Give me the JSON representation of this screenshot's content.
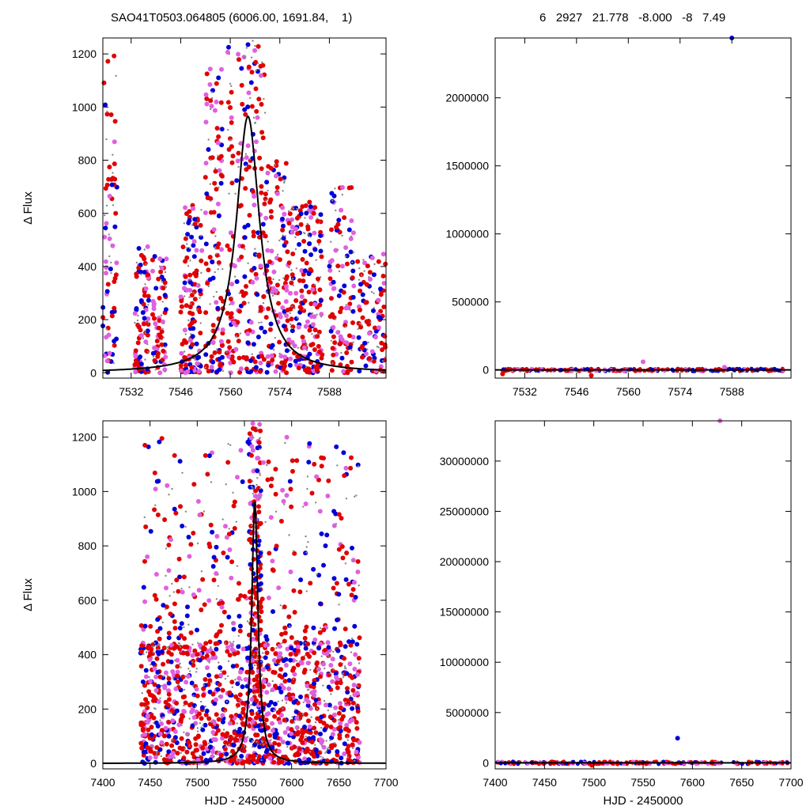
{
  "header": {
    "left": "SAO41T0503.064805 (6006.00, 1691.84,    1)",
    "right": "6   2927   21.778   -8.000   -8   7.49"
  },
  "colors": {
    "red": "#e00000",
    "blue": "#0000d8",
    "pink": "#e060e0",
    "gray": "#888888",
    "curve": "#000000"
  },
  "chart_data": [
    {
      "type": "scatter",
      "panel": "top-left",
      "ylabel": "Δ Flux",
      "xlim": [
        7524,
        7604
      ],
      "ylim": [
        -20,
        1260
      ],
      "xticks": [
        7532,
        7546,
        7560,
        7574,
        7588
      ],
      "yticks": [
        0,
        200,
        400,
        600,
        800,
        1000,
        1200
      ],
      "model": {
        "kind": "lorentzian",
        "peak_x": 7565,
        "peak_y": 965,
        "half_width": 4.0
      },
      "point_clusters": [
        {
          "x": [
            7524,
            7528
          ],
          "y": [
            0,
            1200
          ],
          "n": 60
        },
        {
          "x": [
            7533,
            7537
          ],
          "y": [
            0,
            500
          ],
          "n": 80
        },
        {
          "x": [
            7538,
            7542
          ],
          "y": [
            0,
            450
          ],
          "n": 60
        },
        {
          "x": [
            7546,
            7552
          ],
          "y": [
            0,
            650
          ],
          "n": 120
        },
        {
          "x": [
            7553,
            7558
          ],
          "y": [
            0,
            1150
          ],
          "n": 110
        },
        {
          "x": [
            7559,
            7570
          ],
          "y": [
            0,
            1250
          ],
          "n": 200
        },
        {
          "x": [
            7570,
            7576
          ],
          "y": [
            0,
            800
          ],
          "n": 100
        },
        {
          "x": [
            7576,
            7586
          ],
          "y": [
            0,
            650
          ],
          "n": 180
        },
        {
          "x": [
            7588,
            7595
          ],
          "y": [
            0,
            700
          ],
          "n": 100
        },
        {
          "x": [
            7596,
            7604
          ],
          "y": [
            0,
            450
          ],
          "n": 90
        }
      ]
    },
    {
      "type": "scatter",
      "panel": "top-right",
      "xlim": [
        7524,
        7604
      ],
      "ylim": [
        -60000,
        2440000
      ],
      "xticks": [
        7532,
        7546,
        7560,
        7574,
        7588
      ],
      "yticks": [
        0,
        500000,
        1000000,
        1500000,
        2000000
      ],
      "outliers": [
        {
          "x": 7588,
          "y": 2440000,
          "color": "blue"
        },
        {
          "x": 7564,
          "y": 60000,
          "color": "pink"
        },
        {
          "x": 7586,
          "y": 20000,
          "color": "pink"
        },
        {
          "x": 7550,
          "y": -40000,
          "color": "red"
        },
        {
          "x": 7526,
          "y": -30000,
          "color": "red"
        }
      ]
    },
    {
      "type": "scatter",
      "panel": "bottom-left",
      "xlabel": "HJD - 2450000",
      "ylabel": "Δ Flux",
      "xlim": [
        7400,
        7700
      ],
      "ylim": [
        -20,
        1260
      ],
      "xticks": [
        7400,
        7450,
        7500,
        7550,
        7600,
        7650,
        7700
      ],
      "yticks": [
        0,
        200,
        400,
        600,
        800,
        1000,
        1200
      ],
      "model": {
        "kind": "lorentzian",
        "peak_x": 7561,
        "peak_y": 965,
        "half_width": 4.0
      },
      "point_clusters": [
        {
          "x": [
            7440,
            7555
          ],
          "y": [
            0,
            450
          ],
          "n": 520
        },
        {
          "x": [
            7440,
            7555
          ],
          "y": [
            400,
            1200
          ],
          "n": 160
        },
        {
          "x": [
            7555,
            7568
          ],
          "y": [
            0,
            1250
          ],
          "n": 220
        },
        {
          "x": [
            7568,
            7672
          ],
          "y": [
            0,
            450
          ],
          "n": 460
        },
        {
          "x": [
            7568,
            7672
          ],
          "y": [
            400,
            1200
          ],
          "n": 140
        }
      ]
    },
    {
      "type": "scatter",
      "panel": "bottom-right",
      "xlabel": "HJD - 2450000",
      "xlim": [
        7400,
        7700
      ],
      "ylim": [
        -600000,
        34000000
      ],
      "xticks": [
        7400,
        7450,
        7500,
        7550,
        7600,
        7650,
        7700
      ],
      "yticks": [
        0,
        5000000,
        10000000,
        15000000,
        20000000,
        25000000,
        30000000
      ],
      "outliers": [
        {
          "x": 7628,
          "y": 34000000,
          "color": "pink"
        },
        {
          "x": 7585,
          "y": 2450000,
          "color": "blue"
        },
        {
          "x": 7498,
          "y": -250000,
          "color": "red"
        }
      ]
    }
  ]
}
